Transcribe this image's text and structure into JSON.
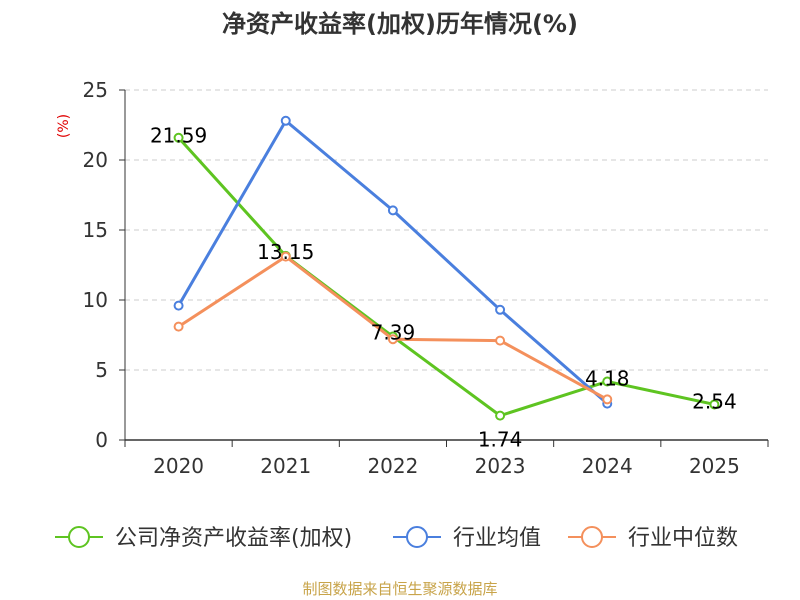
{
  "chart_data": {
    "type": "line",
    "title": "净资产收益率(加权)历年情况(%)",
    "ylabel": "(%)",
    "xlabel": "",
    "categories": [
      "2020",
      "2021",
      "2022",
      "2023",
      "2024",
      "2025"
    ],
    "ylim": [
      0,
      25
    ],
    "yticks": [
      0,
      5,
      10,
      15,
      20,
      25
    ],
    "grid": true,
    "legend_position": "bottom",
    "series": [
      {
        "name": "公司净资产收益率(加权)",
        "color": "#5ec421",
        "values": [
          21.59,
          13.15,
          7.39,
          1.74,
          4.18,
          2.54
        ],
        "labels": [
          "21.59",
          "13.15",
          "7.39",
          "1.74",
          "4.18",
          "2.54"
        ]
      },
      {
        "name": "行业均值",
        "color": "#4a7fde",
        "values": [
          9.6,
          22.8,
          16.4,
          9.3,
          2.6,
          null
        ]
      },
      {
        "name": "行业中位数",
        "color": "#f4905c",
        "values": [
          8.1,
          13.1,
          7.2,
          7.1,
          2.9,
          null
        ]
      }
    ],
    "unit_color": "#e00000"
  },
  "footer": {
    "source": "制图数据来自恒生聚源数据库",
    "color": "#c8a44a"
  }
}
